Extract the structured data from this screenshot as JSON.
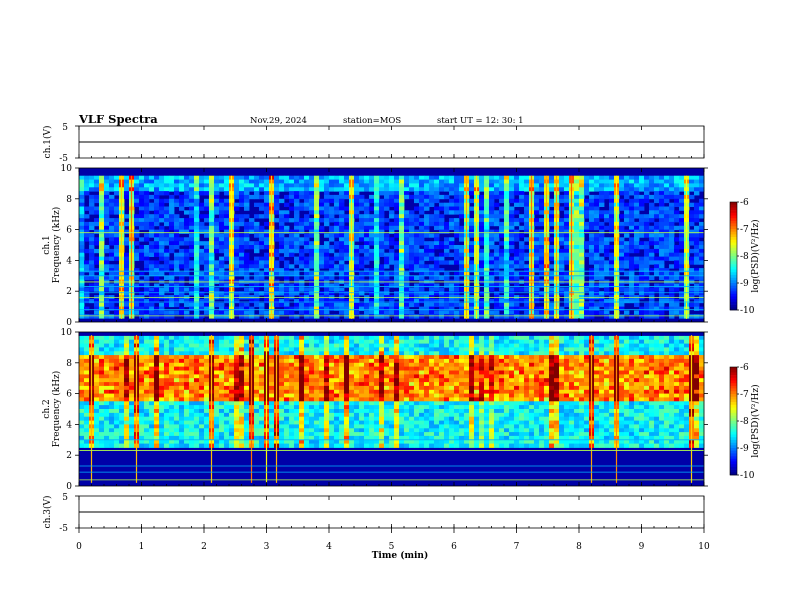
{
  "header": {
    "title": "VLF Spectra",
    "date": "Nov.29, 2024",
    "station": "station=MOS",
    "start_ut": "start  UT =   12: 30: 1"
  },
  "chart_data": [
    {
      "type": "line",
      "panel": "ch1-waveform",
      "ylabel": "ch.1(V)",
      "ylim": [
        -5,
        5
      ],
      "yticks": [
        "5",
        "-5"
      ],
      "xlim": [
        0,
        10
      ],
      "series": [
        {
          "values": [
            0,
            0,
            0,
            0,
            0,
            0,
            0,
            0,
            0,
            0,
            0
          ]
        }
      ]
    },
    {
      "type": "heatmap",
      "panel": "ch1-spectrogram",
      "ylabel_channel": "ch.1",
      "ylabel": "Frequency (kHz)",
      "ylim": [
        0,
        10
      ],
      "yticks": [
        "0",
        "2",
        "4",
        "6",
        "8",
        "10"
      ],
      "xlim": [
        0,
        10
      ],
      "colorbar": {
        "label": "log(PSD)(V²/Hz)",
        "range": [
          -10,
          -6
        ],
        "ticks": [
          "-6",
          "-7",
          "-8",
          "-9",
          "-10"
        ]
      },
      "band_kHz": [
        0.3,
        9.5
      ],
      "background_level": -9.3,
      "tonal_lines_kHz": [
        0.4,
        0.8,
        1.3,
        1.6,
        1.9,
        2.3,
        2.6,
        3.0,
        3.3,
        5.8
      ]
    },
    {
      "type": "heatmap",
      "panel": "ch2-spectrogram",
      "ylabel_channel": "ch.2",
      "ylabel": "Frequency (kHz)",
      "ylim": [
        0,
        10
      ],
      "yticks": [
        "0",
        "2",
        "4",
        "6",
        "8",
        "10"
      ],
      "xlim": [
        0,
        10
      ],
      "colorbar": {
        "label": "log(PSD)(V²/Hz)",
        "range": [
          -10,
          -6
        ],
        "ticks": [
          "-6",
          "-7",
          "-8",
          "-9",
          "-10"
        ]
      },
      "band_kHz": [
        2.5,
        9.8
      ],
      "peak_band_kHz": [
        5.5,
        8.5
      ],
      "background_level": -8.5,
      "tonal_lines_kHz": [
        0.4,
        0.9,
        1.3,
        2.3,
        3.0
      ]
    },
    {
      "type": "line",
      "panel": "ch3-waveform",
      "ylabel": "ch.3(V)",
      "ylim": [
        -5,
        5
      ],
      "yticks": [
        "5",
        "-5"
      ],
      "xlim": [
        0,
        10
      ],
      "series": [
        {
          "values": [
            0,
            0,
            0,
            0,
            0,
            0,
            0,
            0,
            0,
            0,
            0
          ]
        }
      ]
    }
  ],
  "x_axis": {
    "label": "Time  (min)",
    "ticks": [
      "0",
      "1",
      "2",
      "3",
      "4",
      "5",
      "6",
      "7",
      "8",
      "9",
      "10"
    ]
  }
}
